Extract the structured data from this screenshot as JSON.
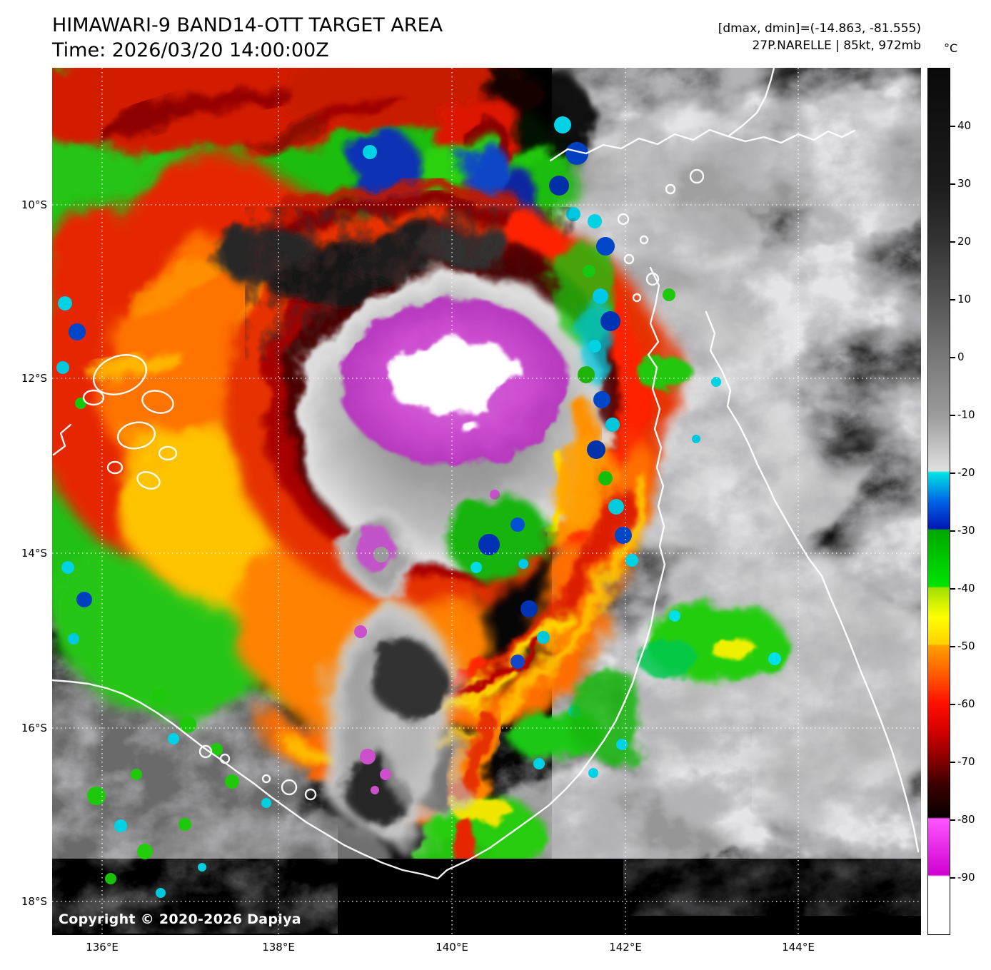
{
  "header": {
    "title": "HIMAWARI-9 BAND14-OTT TARGET AREA",
    "time_line": "Time: 2026/03/20 14:00:00Z",
    "dmax_dmin": "[dmax, dmin]=(-14.863, -81.555)",
    "storm_info": "27P.NARELLE | 85kt, 972mb"
  },
  "map": {
    "copyright": "Copyright © 2020-2026 Dapiya",
    "lat_ticks": [
      "10°S",
      "12°S",
      "14°S",
      "16°S",
      "18°S"
    ],
    "lon_ticks": [
      "136°E",
      "138°E",
      "140°E",
      "142°E",
      "144°E"
    ]
  },
  "colorbar": {
    "unit": "°C",
    "ticks": [
      40,
      30,
      20,
      10,
      0,
      -10,
      -20,
      -30,
      -40,
      -50,
      -60,
      -70,
      -80,
      -90
    ],
    "range": [
      50,
      -100
    ],
    "stops": [
      {
        "v": 50,
        "c": "#0a0a0a"
      },
      {
        "v": 30,
        "c": "#1c1c1c"
      },
      {
        "v": 20,
        "c": "#343434"
      },
      {
        "v": 10,
        "c": "#555555"
      },
      {
        "v": 0,
        "c": "#787878"
      },
      {
        "v": -10,
        "c": "#9b9b9b"
      },
      {
        "v": -19.7,
        "c": "#e0e0e0"
      },
      {
        "v": -20,
        "c": "#00e4e4"
      },
      {
        "v": -25,
        "c": "#0064e6"
      },
      {
        "v": -29.7,
        "c": "#0016b4"
      },
      {
        "v": -30,
        "c": "#00a800"
      },
      {
        "v": -39.7,
        "c": "#00e400"
      },
      {
        "v": -40,
        "c": "#a0e000"
      },
      {
        "v": -45,
        "c": "#ffff00"
      },
      {
        "v": -49.7,
        "c": "#ffd200"
      },
      {
        "v": -50,
        "c": "#ffa000"
      },
      {
        "v": -55,
        "c": "#ff5a00"
      },
      {
        "v": -60,
        "c": "#ff0f00"
      },
      {
        "v": -65,
        "c": "#d20000"
      },
      {
        "v": -70,
        "c": "#820000"
      },
      {
        "v": -74,
        "c": "#3c0000"
      },
      {
        "v": -79.7,
        "c": "#0a0000"
      },
      {
        "v": -80,
        "c": "#ff55ff"
      },
      {
        "v": -89.7,
        "c": "#cf00cf"
      },
      {
        "v": -90,
        "c": "#ffffff"
      },
      {
        "v": -100,
        "c": "#ffffff"
      }
    ]
  }
}
